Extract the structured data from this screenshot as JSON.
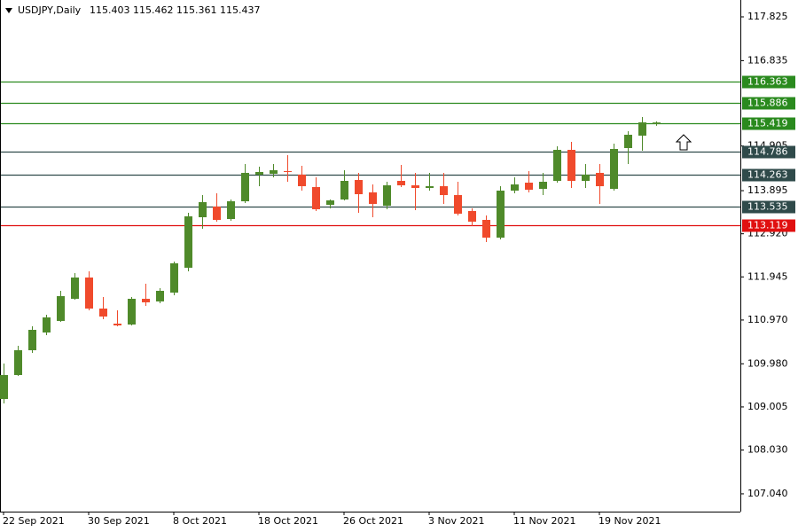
{
  "chart_data": {
    "type": "candlestick",
    "symbol": "USDJPY,Daily",
    "categories": [
      "22 Sep 2021",
      null,
      null,
      null,
      null,
      null,
      "30 Sep 2021",
      null,
      null,
      null,
      null,
      null,
      "8 Oct 2021",
      null,
      null,
      null,
      null,
      null,
      "18 Oct 2021",
      null,
      null,
      null,
      null,
      null,
      "26 Oct 2021",
      null,
      null,
      null,
      null,
      null,
      "3 Nov 2021",
      null,
      null,
      null,
      null,
      null,
      "11 Nov 2021",
      null,
      null,
      null,
      null,
      null,
      "19 Nov 2021",
      null,
      null,
      null,
      null
    ],
    "open": [
      109.184,
      109.726,
      110.287,
      110.688,
      110.949,
      111.45,
      111.931,
      111.229,
      110.888,
      110.868,
      111.45,
      111.39,
      111.59,
      112.152,
      113.294,
      113.535,
      113.254,
      113.655,
      114.257,
      114.277,
      114.337,
      114.257,
      113.976,
      113.575,
      113.695,
      114.136,
      113.856,
      113.555,
      114.116,
      114.016,
      113.956,
      113.996,
      113.795,
      113.435,
      113.234,
      112.833,
      113.896,
      114.076,
      113.936,
      114.116,
      114.818,
      114.116,
      114.297,
      113.936,
      114.858,
      115.139,
      115.403
    ],
    "high": [
      109.986,
      110.387,
      110.828,
      111.089,
      111.63,
      112.031,
      112.071,
      111.49,
      111.189,
      111.49,
      111.791,
      111.69,
      112.292,
      113.394,
      113.795,
      113.836,
      113.695,
      114.497,
      114.437,
      114.497,
      114.698,
      114.457,
      114.196,
      113.695,
      114.357,
      114.297,
      114.036,
      114.096,
      114.477,
      114.297,
      114.297,
      114.297,
      114.096,
      113.495,
      113.334,
      113.996,
      114.196,
      114.337,
      114.297,
      114.898,
      114.998,
      114.497,
      114.497,
      114.958,
      115.239,
      115.56,
      115.462
    ],
    "low": [
      109.084,
      109.706,
      110.227,
      110.628,
      110.929,
      111.43,
      111.189,
      110.989,
      110.828,
      110.848,
      111.289,
      111.35,
      111.53,
      112.071,
      113.034,
      113.194,
      113.214,
      113.615,
      113.996,
      114.196,
      114.096,
      113.896,
      113.435,
      113.495,
      113.675,
      113.394,
      113.294,
      113.475,
      113.976,
      113.455,
      113.896,
      113.595,
      113.334,
      113.094,
      112.733,
      112.793,
      113.836,
      113.856,
      113.795,
      114.076,
      113.956,
      113.956,
      113.595,
      113.896,
      114.497,
      114.798,
      115.361
    ],
    "close": [
      109.726,
      110.287,
      110.748,
      111.029,
      111.51,
      111.931,
      111.229,
      111.049,
      110.848,
      111.45,
      111.37,
      111.63,
      112.252,
      113.314,
      113.635,
      113.234,
      113.655,
      114.297,
      114.317,
      114.357,
      114.317,
      113.996,
      113.475,
      113.675,
      114.116,
      113.815,
      113.595,
      114.016,
      114.016,
      113.956,
      113.996,
      113.795,
      113.374,
      113.194,
      112.833,
      113.896,
      114.036,
      113.916,
      114.096,
      114.818,
      114.116,
      114.257,
      113.996,
      114.838,
      115.159,
      115.439,
      115.437
    ],
    "up_color": "#4f8a2a",
    "down_color": "#f04a2c",
    "ylim": [
      106.638,
      118.206
    ],
    "yticks": [
      117.825,
      116.835,
      114.905,
      113.895,
      {
        "value": 112.92,
        "label": "112.920"
      },
      111.945,
      {
        "value": 110.97,
        "label": "110.970"
      },
      {
        "value": 109.98,
        "label": "109.980"
      },
      109.005,
      {
        "value": 108.03,
        "label": "108.030"
      },
      {
        "value": 107.04,
        "label": "107.040"
      }
    ],
    "levels": [
      {
        "value": 116.363,
        "color": "#2a8a1e"
      },
      {
        "value": 115.886,
        "color": "#2a8a1e"
      },
      {
        "value": 115.419,
        "color": "#2a8a1e"
      },
      {
        "value": 114.786,
        "color": "#2f4a4a"
      },
      {
        "value": 114.263,
        "color": "#2f4a4a"
      },
      {
        "value": 113.535,
        "color": "#2f4a4a"
      },
      {
        "value": 113.119,
        "color": "#e01010"
      }
    ]
  }
}
